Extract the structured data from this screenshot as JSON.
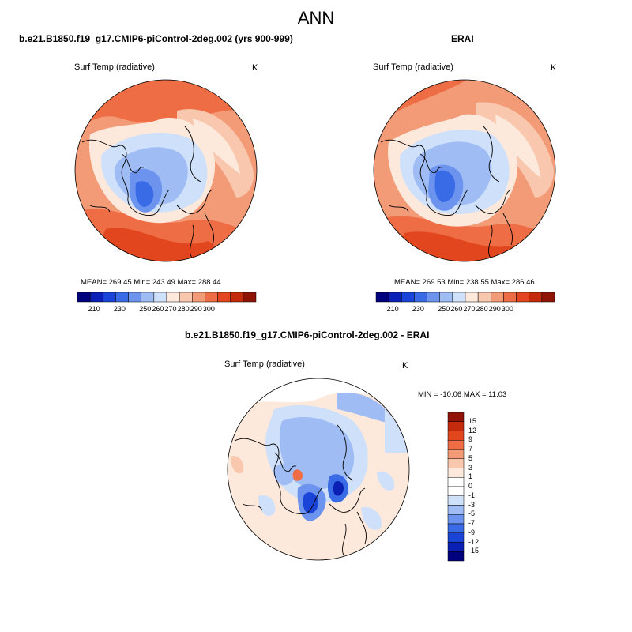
{
  "figure": {
    "title": "ANN"
  },
  "panels": [
    {
      "title": "b.e21.B1850.f19_g17.CMIP6-piControl-2deg.002 (yrs 900-999)",
      "variable": "Surf Temp (radiative)",
      "unit": "K",
      "stats": "MEAN= 269.45  Min= 243.49  Max= 288.44"
    },
    {
      "title": "ERAI",
      "variable": "Surf Temp (radiative)",
      "unit": "K",
      "stats": "MEAN= 269.53  Min= 238.55  Max= 286.46"
    },
    {
      "title": "b.e21.B1850.f19_g17.CMIP6-piControl-2deg.002 - ERAI",
      "variable": "Surf Temp (radiative)",
      "unit": "K",
      "stats": "MIN = -10.06 MAX =  11.03"
    }
  ],
  "abs_colorbar": {
    "labels": [
      "210",
      "230",
      "250",
      "260",
      "270",
      "280",
      "290",
      "300"
    ],
    "colors": [
      "#00007f",
      "#0a1fb4",
      "#1a44d8",
      "#3a6be6",
      "#6c94ee",
      "#9fbdf4",
      "#cfe0fa",
      "#fde9dc",
      "#f8c7ad",
      "#f39a77",
      "#ee6d45",
      "#e2461e",
      "#c42a0c",
      "#8f1405"
    ]
  },
  "diff_colorbar": {
    "labels": [
      "15",
      "12",
      "9",
      "7",
      "5",
      "3",
      "1",
      "0",
      "-1",
      "-3",
      "-5",
      "-7",
      "-9",
      "-12",
      "-15"
    ],
    "colors": [
      "#8f1405",
      "#c42a0c",
      "#e2461e",
      "#ee6d45",
      "#f39a77",
      "#f8c7ad",
      "#fde9dc",
      "#ffffff",
      "#ffffff",
      "#cfe0fa",
      "#9fbdf4",
      "#6c94ee",
      "#3a6be6",
      "#1a44d8",
      "#0a1fb4",
      "#00007f"
    ]
  }
}
